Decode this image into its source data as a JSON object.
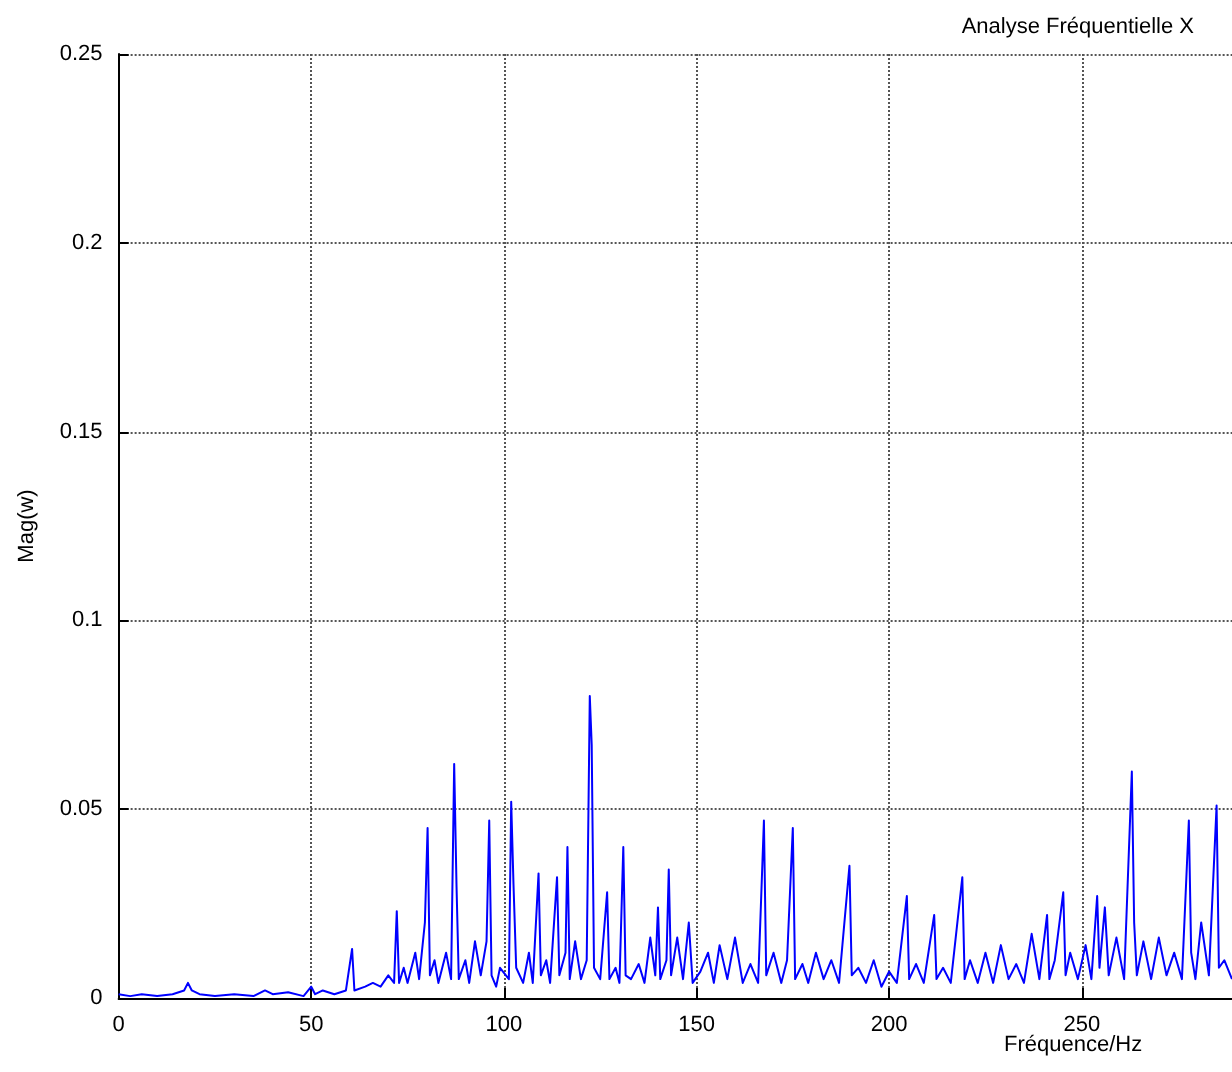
{
  "chart_data": {
    "type": "line",
    "title": "Analyse Fréquentielle X",
    "xlabel": "Fréquence/Hz",
    "ylabel": "Mag(w)",
    "xlim": [
      0,
      289
    ],
    "xticks": [
      0,
      50,
      100,
      150,
      200,
      250
    ],
    "ylim": [
      0,
      0.25
    ],
    "yticks": [
      0,
      0.05,
      0.1,
      0.15,
      0.2,
      0.25
    ],
    "grid": true,
    "marker": "none",
    "line_style": "solid",
    "series": [
      {
        "color": "#0000ff",
        "x": [
          0,
          3,
          6,
          10,
          14,
          17,
          18,
          19,
          21,
          25,
          30,
          35,
          38,
          40,
          44,
          48,
          50,
          51,
          53,
          56,
          59,
          60.6,
          61.2,
          64,
          66,
          68,
          70,
          71.5,
          72.2,
          72.8,
          74,
          75,
          77,
          78,
          79.5,
          80.2,
          80.8,
          82,
          83,
          85,
          86.3,
          87.1,
          87.7,
          88.3,
          90,
          91,
          92.5,
          94,
          95.5,
          96.2,
          96.8,
          98,
          99,
          101.3,
          101.9,
          102.5,
          103.2,
          105,
          106.5,
          107.5,
          109,
          109.6,
          111,
          112,
          113.8,
          114.4,
          116,
          116.5,
          117.1,
          118.5,
          120,
          121.5,
          122.3,
          122.8,
          123.4,
          125,
          126.8,
          127.4,
          129,
          130,
          131,
          131.6,
          133,
          135,
          136.5,
          138,
          139.3,
          140,
          140.6,
          142.2,
          142.8,
          143.4,
          145,
          146.5,
          148,
          149,
          151,
          153,
          154.5,
          156,
          158,
          160,
          162,
          164,
          166,
          167.5,
          168.1,
          170,
          172,
          173.5,
          175,
          175.6,
          177.5,
          179,
          181,
          183,
          185,
          187,
          189.7,
          190.3,
          192,
          194,
          196,
          198,
          200,
          202,
          204.6,
          205.2,
          207,
          209,
          211.7,
          212.3,
          214,
          216,
          219,
          219.6,
          221,
          223,
          225,
          227,
          229,
          231,
          233,
          235,
          237,
          239,
          241,
          241.6,
          243,
          245.2,
          245.8,
          247,
          249,
          251,
          252.5,
          254,
          254.6,
          256,
          257,
          259,
          261,
          263,
          263.6,
          264.3,
          266,
          268,
          270,
          272,
          274,
          276,
          277.8,
          278.4,
          279.5,
          281,
          283,
          285,
          285.6,
          287,
          289
        ],
        "values": [
          0.001,
          0.0005,
          0.001,
          0.0005,
          0.001,
          0.002,
          0.004,
          0.002,
          0.001,
          0.0005,
          0.001,
          0.0005,
          0.002,
          0.001,
          0.0015,
          0.0005,
          0.003,
          0.001,
          0.002,
          0.001,
          0.002,
          0.013,
          0.002,
          0.003,
          0.004,
          0.003,
          0.006,
          0.004,
          0.023,
          0.004,
          0.008,
          0.004,
          0.012,
          0.005,
          0.02,
          0.045,
          0.006,
          0.01,
          0.004,
          0.012,
          0.005,
          0.062,
          0.03,
          0.005,
          0.01,
          0.004,
          0.015,
          0.006,
          0.015,
          0.047,
          0.006,
          0.003,
          0.008,
          0.005,
          0.052,
          0.03,
          0.008,
          0.004,
          0.012,
          0.004,
          0.033,
          0.006,
          0.01,
          0.004,
          0.032,
          0.006,
          0.012,
          0.04,
          0.005,
          0.015,
          0.005,
          0.01,
          0.08,
          0.067,
          0.008,
          0.005,
          0.028,
          0.005,
          0.008,
          0.004,
          0.04,
          0.006,
          0.005,
          0.009,
          0.004,
          0.016,
          0.006,
          0.024,
          0.005,
          0.01,
          0.034,
          0.006,
          0.016,
          0.005,
          0.02,
          0.004,
          0.007,
          0.012,
          0.004,
          0.014,
          0.005,
          0.016,
          0.004,
          0.009,
          0.004,
          0.047,
          0.006,
          0.012,
          0.004,
          0.01,
          0.045,
          0.005,
          0.009,
          0.004,
          0.012,
          0.005,
          0.01,
          0.004,
          0.035,
          0.006,
          0.008,
          0.004,
          0.01,
          0.003,
          0.007,
          0.004,
          0.027,
          0.005,
          0.009,
          0.004,
          0.022,
          0.005,
          0.008,
          0.004,
          0.032,
          0.005,
          0.01,
          0.004,
          0.012,
          0.004,
          0.014,
          0.005,
          0.009,
          0.004,
          0.017,
          0.005,
          0.022,
          0.005,
          0.01,
          0.028,
          0.006,
          0.012,
          0.005,
          0.014,
          0.005,
          0.027,
          0.008,
          0.024,
          0.006,
          0.016,
          0.005,
          0.06,
          0.02,
          0.006,
          0.015,
          0.005,
          0.016,
          0.006,
          0.012,
          0.005,
          0.047,
          0.012,
          0.005,
          0.02,
          0.006,
          0.051,
          0.008,
          0.01,
          0.005
        ]
      }
    ]
  }
}
